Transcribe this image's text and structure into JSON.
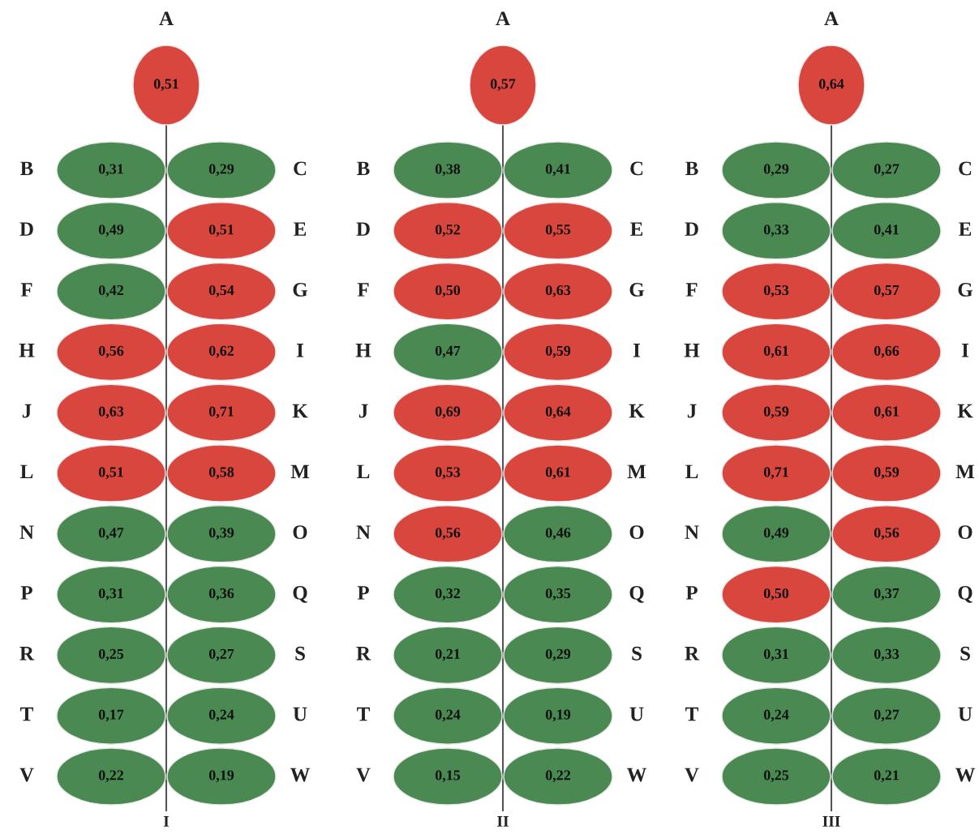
{
  "chart_data": [
    {
      "type": "other",
      "xlabel": "I",
      "values": [
        0.51,
        0.31,
        0.29,
        0.49,
        0.51,
        0.42,
        0.54,
        0.56,
        0.62,
        0.63,
        0.71,
        0.51,
        0.58,
        0.47,
        0.39,
        0.31,
        0.36,
        0.25,
        0.27,
        0.17,
        0.24,
        0.22,
        0.19
      ],
      "value_labels": [
        "0,51",
        "0,31",
        "0,29",
        "0,49",
        "0,51",
        "0,42",
        "0,54",
        "0,56",
        "0,62",
        "0,63",
        "0,71",
        "0,51",
        "0,58",
        "0,47",
        "0,39",
        "0,31",
        "0,36",
        "0,25",
        "0,27",
        "0,17",
        "0,24",
        "0,22",
        "0,19"
      ],
      "categories": [
        "A",
        "B",
        "C",
        "D",
        "E",
        "F",
        "G",
        "H",
        "I",
        "J",
        "K",
        "L",
        "M",
        "N",
        "O",
        "P",
        "Q",
        "R",
        "S",
        "T",
        "U",
        "V",
        "W"
      ],
      "colors": [
        "#d9463d",
        "#4a8a52",
        "#4a8a52",
        "#4a8a52",
        "#d9463d",
        "#4a8a52",
        "#d9463d",
        "#d9463d",
        "#d9463d",
        "#d9463d",
        "#d9463d",
        "#d9463d",
        "#d9463d",
        "#4a8a52",
        "#4a8a52",
        "#4a8a52",
        "#4a8a52",
        "#4a8a52",
        "#4a8a52",
        "#4a8a52",
        "#4a8a52",
        "#4a8a52",
        "#4a8a52"
      ]
    },
    {
      "type": "other",
      "xlabel": "II",
      "values": [
        0.57,
        0.38,
        0.41,
        0.52,
        0.55,
        0.5,
        0.63,
        0.47,
        0.59,
        0.69,
        0.64,
        0.53,
        0.61,
        0.56,
        0.46,
        0.32,
        0.35,
        0.21,
        0.29,
        0.24,
        0.19,
        0.15,
        0.22
      ],
      "value_labels": [
        "0,57",
        "0,38",
        "0,41",
        "0,52",
        "0,55",
        "0,50",
        "0,63",
        "0,47",
        "0,59",
        "0,69",
        "0,64",
        "0,53",
        "0,61",
        "0,56",
        "0,46",
        "0,32",
        "0,35",
        "0,21",
        "0,29",
        "0,24",
        "0,19",
        "0,15",
        "0,22"
      ],
      "categories": [
        "A",
        "B",
        "C",
        "D",
        "E",
        "F",
        "G",
        "H",
        "I",
        "J",
        "K",
        "L",
        "M",
        "N",
        "O",
        "P",
        "Q",
        "R",
        "S",
        "T",
        "U",
        "V",
        "W"
      ],
      "colors": [
        "#d9463d",
        "#4a8a52",
        "#4a8a52",
        "#d9463d",
        "#d9463d",
        "#d9463d",
        "#d9463d",
        "#4a8a52",
        "#d9463d",
        "#d9463d",
        "#d9463d",
        "#d9463d",
        "#d9463d",
        "#d9463d",
        "#4a8a52",
        "#4a8a52",
        "#4a8a52",
        "#4a8a52",
        "#4a8a52",
        "#4a8a52",
        "#4a8a52",
        "#4a8a52",
        "#4a8a52"
      ]
    },
    {
      "type": "other",
      "xlabel": "III",
      "values": [
        0.64,
        0.29,
        0.27,
        0.33,
        0.41,
        0.53,
        0.57,
        0.61,
        0.66,
        0.59,
        0.61,
        0.71,
        0.59,
        0.49,
        0.56,
        0.5,
        0.37,
        0.31,
        0.33,
        0.24,
        0.27,
        0.25,
        0.21
      ],
      "value_labels": [
        "0,64",
        "0,29",
        "0,27",
        "0,33",
        "0,41",
        "0,53",
        "0,57",
        "0,61",
        "0,66",
        "0,59",
        "0,61",
        "0,71",
        "0,59",
        "0,49",
        "0,56",
        "0,50",
        "0,37",
        "0,31",
        "0,33",
        "0,24",
        "0,27",
        "0,25",
        "0,21"
      ],
      "categories": [
        "A",
        "B",
        "C",
        "D",
        "E",
        "F",
        "G",
        "H",
        "I",
        "J",
        "K",
        "L",
        "M",
        "N",
        "O",
        "P",
        "Q",
        "R",
        "S",
        "T",
        "U",
        "V",
        "W"
      ],
      "colors": [
        "#d9463d",
        "#4a8a52",
        "#4a8a52",
        "#4a8a52",
        "#4a8a52",
        "#d9463d",
        "#d9463d",
        "#d9463d",
        "#d9463d",
        "#d9463d",
        "#d9463d",
        "#d9463d",
        "#d9463d",
        "#4a8a52",
        "#d9463d",
        "#d9463d",
        "#4a8a52",
        "#4a8a52",
        "#4a8a52",
        "#4a8a52",
        "#4a8a52",
        "#4a8a52",
        "#4a8a52"
      ]
    }
  ]
}
